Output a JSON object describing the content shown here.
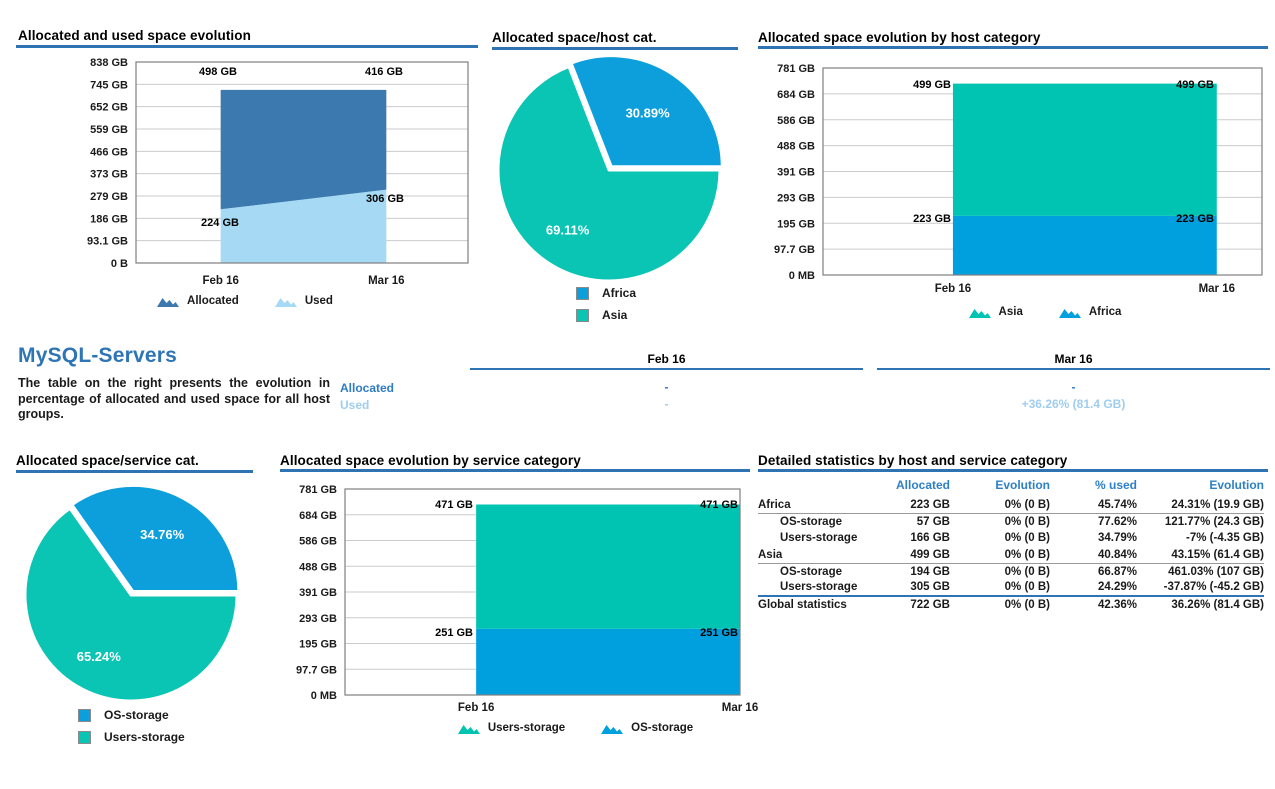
{
  "colors": {
    "accent_blue": "#2E74B5",
    "heading_blue": "#2E75B6",
    "table_header_blue": "#2E80C6",
    "allocated_label_blue": "#2E7CC4",
    "used_label_light_blue": "#9FCDF0",
    "grid_gray": "#CBCBCB",
    "plot_border_gray": "#7F7F7F"
  },
  "chart_data": [
    {
      "type": "area",
      "title": "Allocated and used space evolution",
      "categories": [
        "Feb 16",
        "Mar 16"
      ],
      "stacked": true,
      "series": [
        {
          "name": "Allocated",
          "color": "#3B79AE",
          "values": [
            498,
            416
          ]
        },
        {
          "name": "Used",
          "color": "#A6DAF4",
          "values": [
            224,
            306
          ]
        }
      ],
      "ylim": [
        0,
        838
      ],
      "yticks": [
        "838 GB",
        "745 GB",
        "652 GB",
        "559 GB",
        "466 GB",
        "373 GB",
        "279 GB",
        "186 GB",
        "93.1 GB",
        "0 B"
      ],
      "data_labels": [
        "498 GB",
        "416 GB",
        "224 GB",
        "306 GB"
      ],
      "legend_position": "bottom",
      "grid": true
    },
    {
      "type": "pie",
      "title": "Allocated space/host cat.",
      "labels": [
        "Africa",
        "Asia"
      ],
      "values": [
        30.89,
        69.11
      ],
      "value_labels": [
        "30.89%",
        "69.11%"
      ],
      "colors": [
        "#0D9FDB",
        "#0AC4B4"
      ],
      "legend_position": "bottom"
    },
    {
      "type": "area",
      "title": "Allocated space evolution by host category",
      "categories": [
        "Feb 16",
        "Mar 16"
      ],
      "stacked": true,
      "series": [
        {
          "name": "Asia",
          "color": "#00C4B2",
          "values": [
            499,
            499
          ]
        },
        {
          "name": "Africa",
          "color": "#00A0DE",
          "values": [
            223,
            223
          ]
        }
      ],
      "ylim": [
        0,
        781
      ],
      "yticks": [
        "781 GB",
        "684 GB",
        "586 GB",
        "488 GB",
        "391 GB",
        "293 GB",
        "195 GB",
        "97.7 GB",
        "0 MB"
      ],
      "data_labels": [
        "499 GB",
        "499 GB",
        "223 GB",
        "223 GB"
      ],
      "legend_position": "bottom",
      "grid": true
    },
    {
      "type": "pie",
      "title": "Allocated space/service cat.",
      "labels": [
        "OS-storage",
        "Users-storage"
      ],
      "values": [
        34.76,
        65.24
      ],
      "value_labels": [
        "34.76%",
        "65.24%"
      ],
      "colors": [
        "#0D9FDB",
        "#0AC4B4"
      ],
      "legend_position": "bottom"
    },
    {
      "type": "area",
      "title": "Allocated space evolution by service category",
      "categories": [
        "Feb 16",
        "Mar 16"
      ],
      "stacked": true,
      "series": [
        {
          "name": "Users-storage",
          "color": "#00C4B2",
          "values": [
            471,
            471
          ]
        },
        {
          "name": "OS-storage",
          "color": "#00A0DE",
          "values": [
            251,
            251
          ]
        }
      ],
      "ylim": [
        0,
        781
      ],
      "yticks": [
        "781 GB",
        "684 GB",
        "586 GB",
        "488 GB",
        "391 GB",
        "293 GB",
        "195 GB",
        "97.7 GB",
        "0 MB"
      ],
      "data_labels": [
        "471 GB",
        "471 GB",
        "251 GB",
        "251 GB"
      ],
      "legend_position": "bottom",
      "grid": true
    },
    {
      "type": "table",
      "columns": [
        "",
        "Feb 16",
        "Mar 16"
      ],
      "rows": [
        [
          "Allocated",
          "-",
          "-"
        ],
        [
          "Used",
          "-",
          "+36.26% (81.4 GB)"
        ]
      ]
    },
    {
      "type": "table",
      "title": "Detailed statistics by host and service category",
      "columns": [
        "",
        "Allocated",
        "Evolution",
        "% used",
        "Evolution"
      ],
      "rows": [
        {
          "label": "Africa",
          "indent": false,
          "cells": [
            "223 GB",
            "0% (0 B)",
            "45.74%",
            "24.31% (19.9 GB)"
          ],
          "rule_below": true
        },
        {
          "label": "OS-storage",
          "indent": true,
          "cells": [
            "57 GB",
            "0% (0 B)",
            "77.62%",
            "121.77% (24.3 GB)"
          ]
        },
        {
          "label": "Users-storage",
          "indent": true,
          "cells": [
            "166 GB",
            "0% (0 B)",
            "34.79%",
            "-7% (-4.35 GB)"
          ]
        },
        {
          "label": "Asia",
          "indent": false,
          "cells": [
            "499 GB",
            "0% (0 B)",
            "40.84%",
            "43.15% (61.4 GB)"
          ],
          "rule_below": true
        },
        {
          "label": "OS-storage",
          "indent": true,
          "cells": [
            "194 GB",
            "0% (0 B)",
            "66.87%",
            "461.03% (107 GB)"
          ]
        },
        {
          "label": "Users-storage",
          "indent": true,
          "cells": [
            "305 GB",
            "0% (0 B)",
            "24.29%",
            "-37.87% (-45.2 GB)"
          ]
        },
        {
          "label": "Global statistics",
          "indent": false,
          "cells": [
            "722 GB",
            "0% (0 B)",
            "42.36%",
            "36.26% (81.4 GB)"
          ],
          "rule_above": true
        }
      ]
    }
  ],
  "sections": {
    "mysql": {
      "heading": "MySQL-Servers",
      "description": "The table on the right presents the evolution in percentage of allocated and used space for all host groups."
    }
  }
}
